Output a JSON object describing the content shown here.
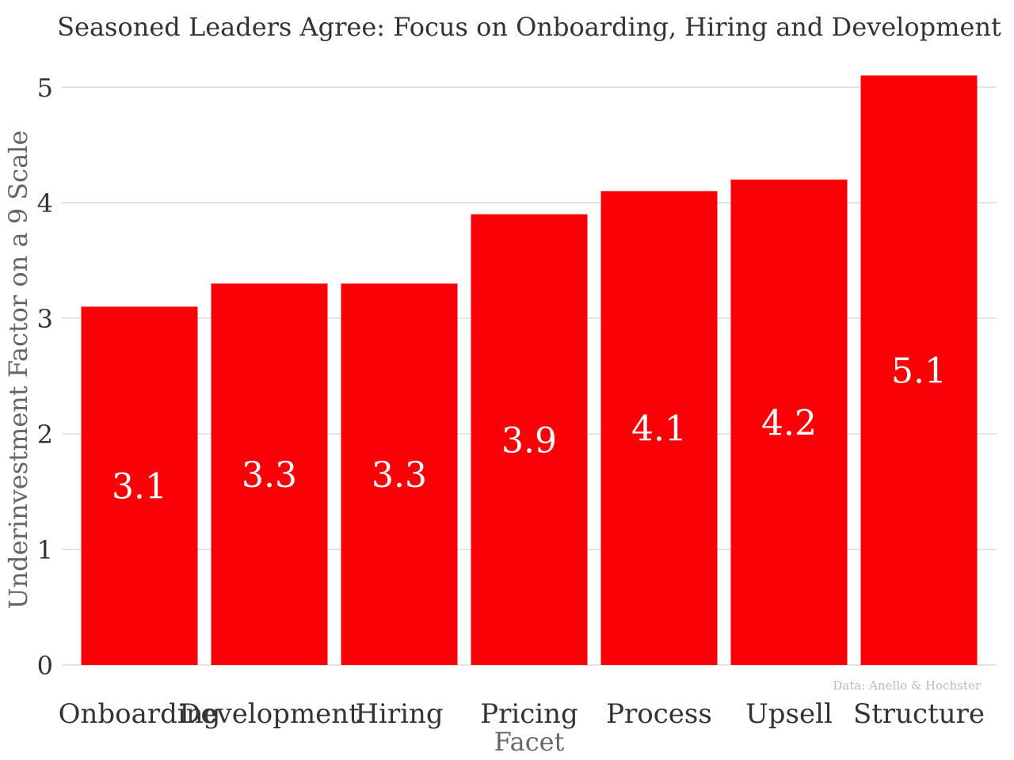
{
  "chart_data": {
    "type": "bar",
    "title": "Seasoned Leaders Agree: Focus on Onboarding, Hiring and Development",
    "xlabel": "Facet",
    "ylabel": "Underinvestment Factor on a 9 Scale",
    "categories": [
      "Onboarding",
      "Development",
      "Hiring",
      "Pricing",
      "Process",
      "Upsell",
      "Structure"
    ],
    "values": [
      3.1,
      3.3,
      3.3,
      3.9,
      4.1,
      4.2,
      5.1
    ],
    "data_labels": [
      "3.1",
      "3.3",
      "3.3",
      "3.9",
      "4.1",
      "4.2",
      "5.1"
    ],
    "ylim": [
      0,
      5.2
    ],
    "yticks": [
      0,
      1,
      2,
      3,
      4,
      5
    ],
    "grid": true,
    "legend": "none",
    "bar_color": "#fa0007",
    "source": "Data: Anello & Hochster"
  }
}
